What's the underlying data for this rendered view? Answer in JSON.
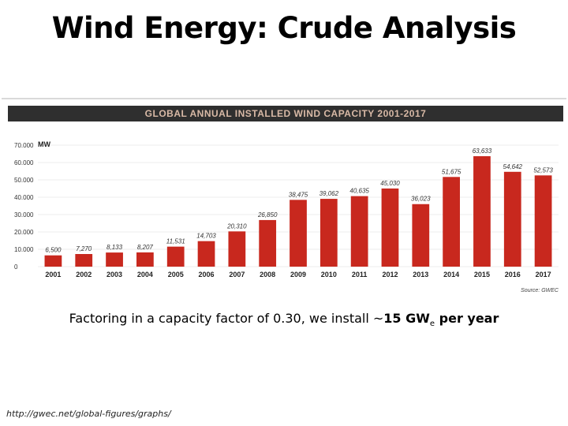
{
  "slide": {
    "title": "Wind Energy: Crude Analysis",
    "caption_prefix": "Factoring in a capacity factor of 0.30, we install ~",
    "caption_bold": "15 GW",
    "caption_sub": "e",
    "caption_bold_suffix": " per year",
    "source_url": "http://gwec.net/global-figures/graphs/"
  },
  "chart_data": {
    "type": "bar",
    "title": "GLOBAL ANNUAL INSTALLED WIND CAPACITY 2001-2017",
    "ylabel": "MW",
    "xlabel": "",
    "source_note": "Source: GWEC",
    "ylim": [
      0,
      70000
    ],
    "yticks": [
      "0",
      "10.000",
      "20.000",
      "30.000",
      "40.000",
      "50.000",
      "60.000",
      "70.000"
    ],
    "categories": [
      "2001",
      "2002",
      "2003",
      "2004",
      "2005",
      "2006",
      "2007",
      "2008",
      "2009",
      "2010",
      "2011",
      "2012",
      "2013",
      "2014",
      "2015",
      "2016",
      "2017"
    ],
    "values": [
      6500,
      7270,
      8133,
      8207,
      11531,
      14703,
      20310,
      26850,
      38475,
      39062,
      40635,
      45030,
      36023,
      51675,
      63633,
      54642,
      52573
    ],
    "value_labels": [
      "6,500",
      "7,270",
      "8,133",
      "8,207",
      "11,531",
      "14,703",
      "20,310",
      "26,850",
      "38,475",
      "39,062",
      "40,635",
      "45,030",
      "36,023",
      "51,675",
      "63,633",
      "54,642",
      "52,573"
    ],
    "bar_color": "#c8281e",
    "banner_color": "#2f2f2f",
    "banner_text_color": "#d8b9a6"
  }
}
